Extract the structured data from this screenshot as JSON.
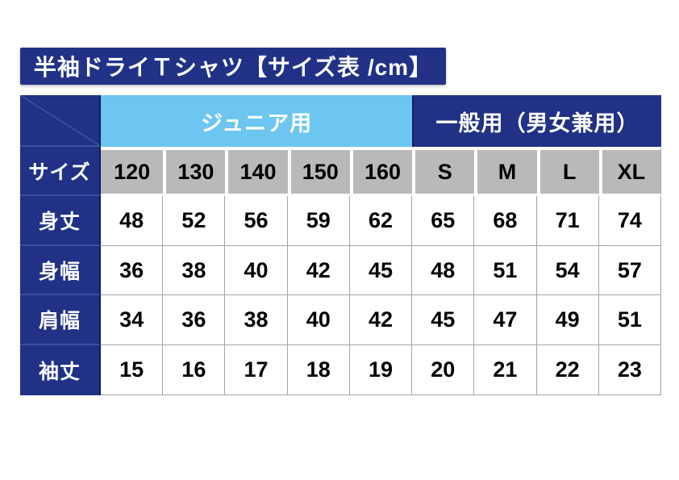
{
  "chart_data": {
    "type": "table",
    "title": "半袖ドライＴシャツ【サイズ表 /cm】",
    "unit": "cm",
    "column_groups": [
      {
        "label": "ジュニア用",
        "span": 5
      },
      {
        "label": "一般用（男女兼用）",
        "span": 4
      }
    ],
    "header_label": "サイズ",
    "columns": [
      "120",
      "130",
      "140",
      "150",
      "160",
      "S",
      "M",
      "L",
      "XL"
    ],
    "rows": [
      {
        "label": "身丈",
        "values": [
          48,
          52,
          56,
          59,
          62,
          65,
          68,
          71,
          74
        ]
      },
      {
        "label": "身幅",
        "values": [
          36,
          38,
          40,
          42,
          45,
          48,
          51,
          54,
          57
        ]
      },
      {
        "label": "肩幅",
        "values": [
          34,
          36,
          38,
          40,
          42,
          45,
          47,
          49,
          51
        ]
      },
      {
        "label": "袖丈",
        "values": [
          15,
          16,
          17,
          18,
          19,
          20,
          21,
          22,
          23
        ]
      }
    ],
    "layout": {
      "grid": "on",
      "corner_cell": "diagonal-blank"
    }
  },
  "colors": {
    "navy": "#203186",
    "navy_dark_border": "#141f5e",
    "navy_light_separator": "#3e4d9c",
    "light_blue": "#6cc6f0",
    "header_gray": "#b9b9b9",
    "cell_border_gray": "#a5a5a5",
    "text_white": "#ffffff",
    "text_black": "#000000"
  }
}
